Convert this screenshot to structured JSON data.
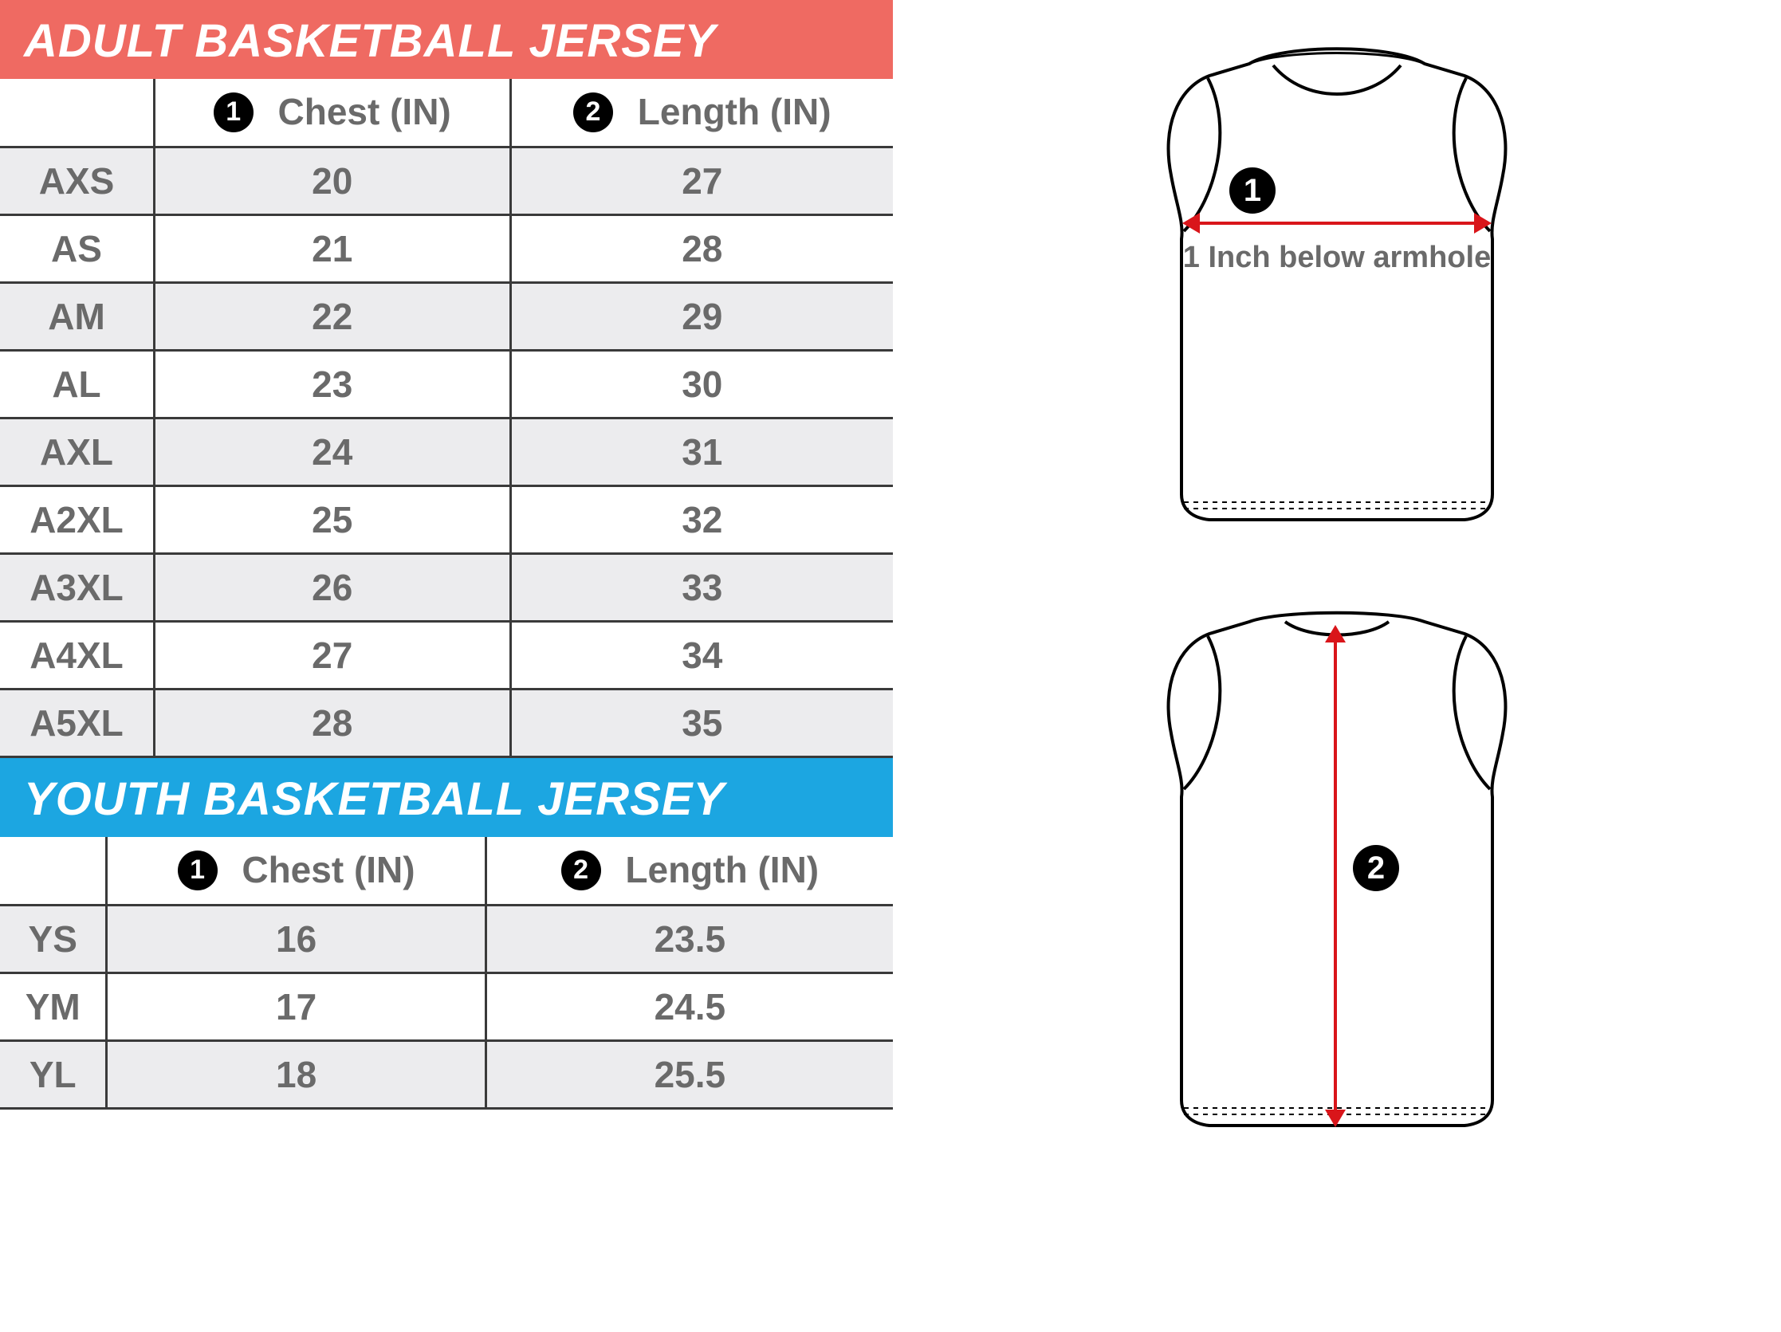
{
  "adult": {
    "title": "ADULT BASKETBALL JERSEY",
    "title_bg": "#ef6a62",
    "columns": {
      "chest": {
        "badge": "1",
        "label": "Chest (IN)"
      },
      "length": {
        "badge": "2",
        "label": "Length (IN)"
      }
    },
    "rows": [
      {
        "size": "AXS",
        "chest": "20",
        "length": "27"
      },
      {
        "size": "AS",
        "chest": "21",
        "length": "28"
      },
      {
        "size": "AM",
        "chest": "22",
        "length": "29"
      },
      {
        "size": "AL",
        "chest": "23",
        "length": "30"
      },
      {
        "size": "AXL",
        "chest": "24",
        "length": "31"
      },
      {
        "size": "A2XL",
        "chest": "25",
        "length": "32"
      },
      {
        "size": "A3XL",
        "chest": "26",
        "length": "33"
      },
      {
        "size": "A4XL",
        "chest": "27",
        "length": "34"
      },
      {
        "size": "A5XL",
        "chest": "28",
        "length": "35"
      }
    ]
  },
  "youth": {
    "title": "YOUTH BASKETBALL JERSEY",
    "title_bg": "#1ca6e1",
    "columns": {
      "chest": {
        "badge": "1",
        "label": "Chest (IN)"
      },
      "length": {
        "badge": "2",
        "label": "Length (IN)"
      }
    },
    "rows": [
      {
        "size": "YS",
        "chest": "16",
        "length": "23.5"
      },
      {
        "size": "YM",
        "chest": "17",
        "length": "24.5"
      },
      {
        "size": "YL",
        "chest": "18",
        "length": "25.5"
      }
    ]
  },
  "diagram": {
    "badge1": "1",
    "badge2": "2",
    "armhole_label": "1 Inch below armhole",
    "arrow_color": "#d9151a",
    "jersey_stroke": "#000000",
    "jersey_fill": "#ffffff"
  },
  "style": {
    "text_gray": "#6a6a6a",
    "border": "#3a3a3a",
    "row_alt_bg": "#ececee",
    "body_font_size": 46,
    "title_font_size": 58,
    "badge_diameter": 50
  }
}
